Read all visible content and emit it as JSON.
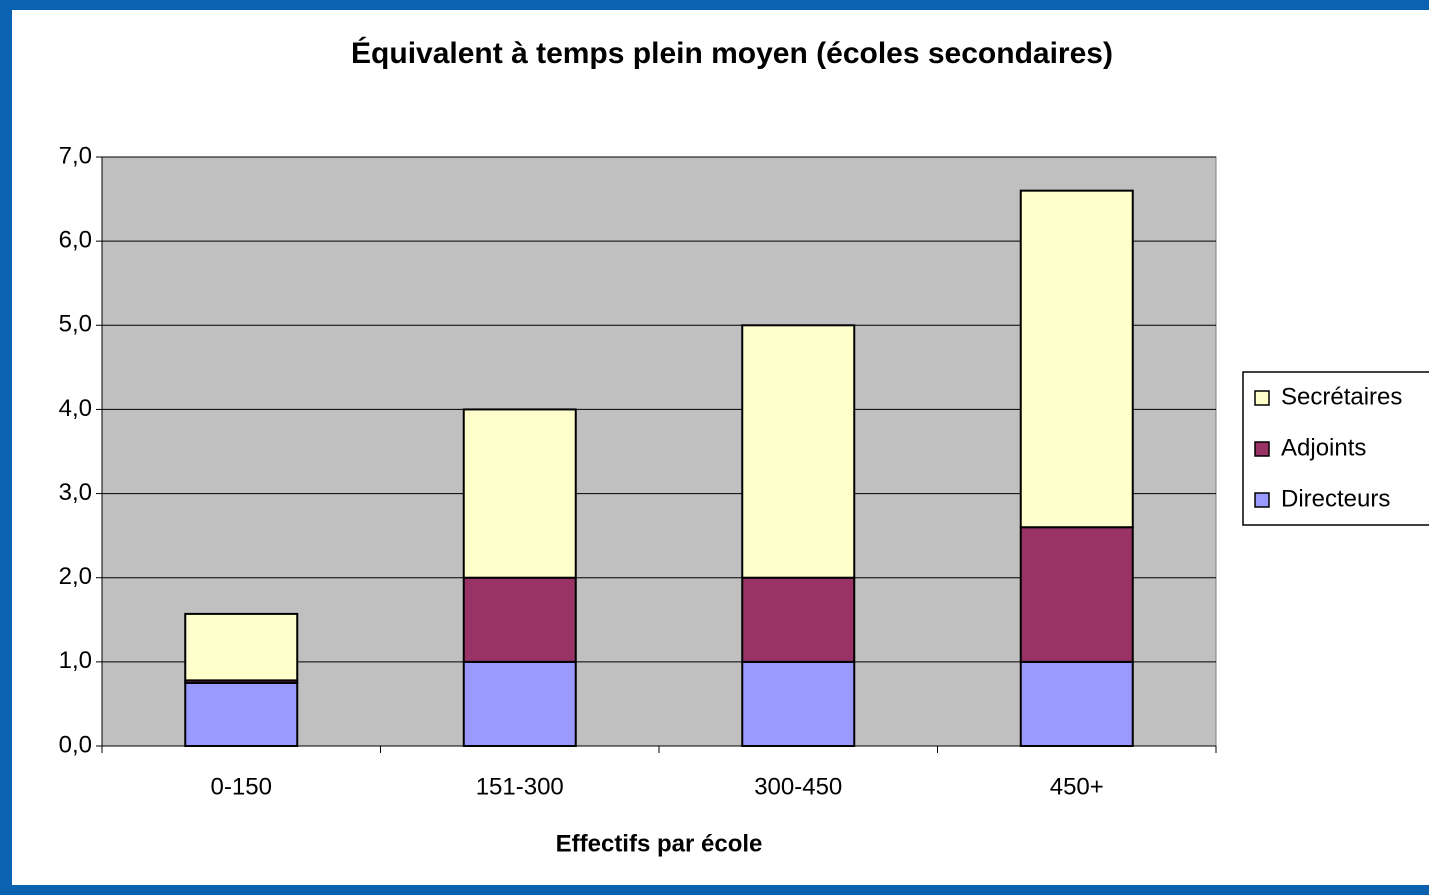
{
  "chart_data": {
    "type": "stacked_bar",
    "title": "Équivalent à temps plein moyen (écoles secondaires)",
    "x_label": "Effectifs par école",
    "categories": [
      "0-150",
      "151-300",
      "300-450",
      "450+"
    ],
    "series": [
      {
        "name": "Directeurs",
        "color": "#9999ff",
        "values": [
          0.75,
          1,
          1,
          1
        ]
      },
      {
        "name": "Adjoints",
        "color": "#993366",
        "values": [
          0.03,
          1,
          1,
          1.6
        ]
      },
      {
        "name": "Secrétaires",
        "color": "#ffffcc",
        "values": [
          0.79,
          2,
          3,
          4
        ]
      }
    ],
    "ylim": [
      0,
      7
    ],
    "yticks": [
      {
        "value": 0,
        "label": "0,0"
      },
      {
        "value": 1,
        "label": "1,0"
      },
      {
        "value": 2,
        "label": "2,0"
      },
      {
        "value": 3,
        "label": "3,0"
      },
      {
        "value": 4,
        "label": "4,0"
      },
      {
        "value": 5,
        "label": "5,0"
      },
      {
        "value": 6,
        "label": "6,0"
      },
      {
        "value": 7,
        "label": "7,0"
      }
    ],
    "grid": true,
    "legend": "right",
    "plot_background": "#c0c0c0"
  }
}
